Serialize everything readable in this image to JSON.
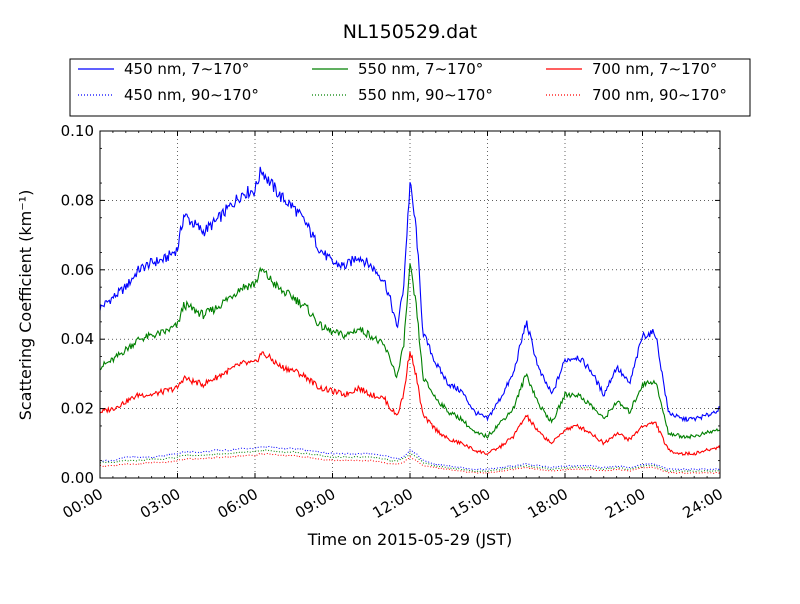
{
  "chart_data": {
    "type": "line",
    "title": "NL150529.dat",
    "xlabel": "Time on 2015-05-29 (JST)",
    "ylabel": "Scattering Coefficient (km⁻¹)",
    "xlim": [
      "00:00",
      "24:00"
    ],
    "ylim": [
      0,
      0.1
    ],
    "x_ticks": [
      "00:00",
      "03:00",
      "06:00",
      "09:00",
      "12:00",
      "15:00",
      "18:00",
      "21:00",
      "24:00"
    ],
    "y_ticks": [
      "0.00",
      "0.02",
      "0.04",
      "0.06",
      "0.08",
      "0.10"
    ],
    "grid": true,
    "legend_position": "top",
    "x_hours": [
      0,
      0.5,
      1,
      1.5,
      2,
      2.5,
      3,
      3.25,
      3.5,
      4,
      4.5,
      5,
      5.5,
      6,
      6.25,
      6.5,
      7,
      7.5,
      8,
      8.5,
      9,
      9.5,
      10,
      10.5,
      11,
      11.25,
      11.5,
      11.75,
      12,
      12.25,
      12.5,
      13,
      13.5,
      14,
      14.5,
      15,
      15.5,
      16,
      16.5,
      17,
      17.5,
      18,
      18.5,
      19,
      19.5,
      20,
      20.5,
      21,
      21.5,
      22,
      22.5,
      23,
      23.5,
      24
    ],
    "series": [
      {
        "name": "450 nm, 7∼170°",
        "color": "#0000ff",
        "style": "solid",
        "values": [
          0.049,
          0.052,
          0.055,
          0.06,
          0.062,
          0.063,
          0.066,
          0.076,
          0.074,
          0.071,
          0.074,
          0.078,
          0.082,
          0.083,
          0.089,
          0.086,
          0.081,
          0.078,
          0.073,
          0.066,
          0.062,
          0.061,
          0.064,
          0.061,
          0.057,
          0.051,
          0.043,
          0.055,
          0.085,
          0.071,
          0.042,
          0.033,
          0.027,
          0.025,
          0.019,
          0.017,
          0.023,
          0.03,
          0.045,
          0.031,
          0.024,
          0.034,
          0.035,
          0.031,
          0.024,
          0.032,
          0.027,
          0.041,
          0.042,
          0.019,
          0.017,
          0.017,
          0.018,
          0.02
        ]
      },
      {
        "name": "550 nm, 7∼170°",
        "color": "#008000",
        "style": "solid",
        "values": [
          0.032,
          0.034,
          0.037,
          0.04,
          0.041,
          0.042,
          0.044,
          0.05,
          0.049,
          0.047,
          0.049,
          0.052,
          0.055,
          0.056,
          0.06,
          0.058,
          0.054,
          0.052,
          0.049,
          0.044,
          0.042,
          0.041,
          0.043,
          0.041,
          0.038,
          0.034,
          0.029,
          0.038,
          0.061,
          0.049,
          0.029,
          0.023,
          0.019,
          0.017,
          0.013,
          0.012,
          0.016,
          0.02,
          0.03,
          0.021,
          0.016,
          0.024,
          0.024,
          0.021,
          0.017,
          0.022,
          0.019,
          0.027,
          0.028,
          0.013,
          0.012,
          0.012,
          0.013,
          0.014
        ]
      },
      {
        "name": "700 nm, 7∼170°",
        "color": "#ff0000",
        "style": "solid",
        "values": [
          0.019,
          0.02,
          0.022,
          0.024,
          0.024,
          0.025,
          0.026,
          0.029,
          0.028,
          0.027,
          0.029,
          0.031,
          0.033,
          0.033,
          0.036,
          0.035,
          0.032,
          0.031,
          0.029,
          0.026,
          0.025,
          0.024,
          0.026,
          0.024,
          0.023,
          0.02,
          0.018,
          0.024,
          0.037,
          0.029,
          0.018,
          0.014,
          0.011,
          0.01,
          0.008,
          0.007,
          0.009,
          0.012,
          0.018,
          0.013,
          0.01,
          0.014,
          0.015,
          0.013,
          0.01,
          0.013,
          0.011,
          0.015,
          0.016,
          0.008,
          0.007,
          0.007,
          0.008,
          0.009
        ]
      },
      {
        "name": "450 nm, 90∼170°",
        "color": "#0000ff",
        "style": "dotted",
        "values": [
          0.005,
          0.005,
          0.006,
          0.006,
          0.006,
          0.0065,
          0.007,
          0.0075,
          0.0075,
          0.0075,
          0.008,
          0.008,
          0.0085,
          0.0085,
          0.009,
          0.009,
          0.0085,
          0.0085,
          0.008,
          0.0075,
          0.007,
          0.007,
          0.007,
          0.007,
          0.0065,
          0.006,
          0.0055,
          0.006,
          0.008,
          0.007,
          0.005,
          0.004,
          0.0035,
          0.003,
          0.0025,
          0.0025,
          0.003,
          0.0035,
          0.004,
          0.0035,
          0.003,
          0.0035,
          0.0035,
          0.0035,
          0.003,
          0.0035,
          0.003,
          0.004,
          0.004,
          0.0025,
          0.0025,
          0.0025,
          0.0025,
          0.0025
        ]
      },
      {
        "name": "550 nm, 90∼170°",
        "color": "#008000",
        "style": "dotted",
        "values": [
          0.0045,
          0.0045,
          0.005,
          0.005,
          0.0055,
          0.0055,
          0.006,
          0.0065,
          0.0065,
          0.0065,
          0.007,
          0.007,
          0.0075,
          0.0075,
          0.008,
          0.008,
          0.0075,
          0.0075,
          0.007,
          0.0065,
          0.006,
          0.006,
          0.006,
          0.006,
          0.0055,
          0.005,
          0.005,
          0.0055,
          0.007,
          0.006,
          0.0045,
          0.0035,
          0.003,
          0.0025,
          0.002,
          0.002,
          0.0025,
          0.003,
          0.0035,
          0.003,
          0.0025,
          0.003,
          0.003,
          0.003,
          0.0025,
          0.003,
          0.0025,
          0.0035,
          0.0035,
          0.002,
          0.002,
          0.002,
          0.002,
          0.002
        ]
      },
      {
        "name": "700 nm, 90∼170°",
        "color": "#ff0000",
        "style": "dotted",
        "values": [
          0.0035,
          0.0035,
          0.004,
          0.004,
          0.0045,
          0.0045,
          0.005,
          0.0055,
          0.0055,
          0.0055,
          0.006,
          0.006,
          0.0065,
          0.0065,
          0.007,
          0.007,
          0.0065,
          0.0065,
          0.006,
          0.0055,
          0.005,
          0.005,
          0.005,
          0.005,
          0.0045,
          0.004,
          0.004,
          0.0045,
          0.006,
          0.005,
          0.0035,
          0.003,
          0.0025,
          0.002,
          0.0015,
          0.0015,
          0.002,
          0.0025,
          0.003,
          0.0025,
          0.002,
          0.0025,
          0.0025,
          0.0025,
          0.002,
          0.0025,
          0.002,
          0.003,
          0.003,
          0.0015,
          0.0015,
          0.0015,
          0.0015,
          0.0015
        ]
      }
    ]
  }
}
